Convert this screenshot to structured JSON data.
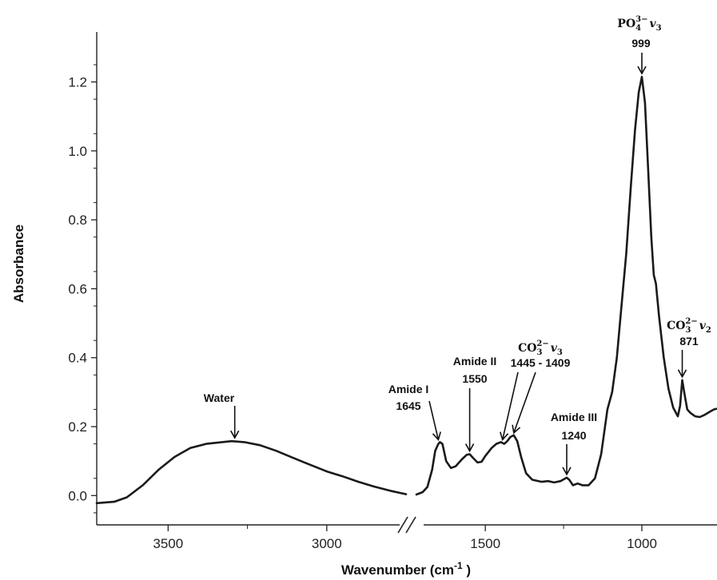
{
  "chart_data": {
    "type": "line",
    "title": "",
    "xlabel": "Wavenumber (cm",
    "xlabel_sup": "-1",
    "xlabel_close": " )",
    "ylabel": "Absorbance",
    "x_reversed": true,
    "x_break": true,
    "x_segments": [
      {
        "xlim": [
          3725,
          2740
        ]
      },
      {
        "xlim": [
          1720,
          760
        ]
      }
    ],
    "ylim": [
      -0.085,
      1.345
    ],
    "x_ticks": [
      {
        "value": 3500,
        "label": "3500"
      },
      {
        "value": 3000,
        "label": "3000"
      },
      {
        "value": 1500,
        "label": "1500"
      },
      {
        "value": 1000,
        "label": "1000"
      }
    ],
    "y_ticks": [
      {
        "value": 0.0,
        "label": "0.0"
      },
      {
        "value": 0.2,
        "label": "0.2"
      },
      {
        "value": 0.4,
        "label": "0.4"
      },
      {
        "value": 0.6,
        "label": "0.6"
      },
      {
        "value": 0.8,
        "label": "0.8"
      },
      {
        "value": 1.0,
        "label": "1.0"
      },
      {
        "value": 1.2,
        "label": "1.2"
      }
    ],
    "grid": false,
    "legend": "none",
    "line_color": "#1a1a1a",
    "series": [
      {
        "segment": 0,
        "points": [
          [
            3725,
            -0.022
          ],
          [
            3670,
            -0.018
          ],
          [
            3630,
            -0.005
          ],
          [
            3580,
            0.03
          ],
          [
            3530,
            0.075
          ],
          [
            3480,
            0.112
          ],
          [
            3430,
            0.138
          ],
          [
            3380,
            0.15
          ],
          [
            3330,
            0.155
          ],
          [
            3300,
            0.158
          ],
          [
            3260,
            0.155
          ],
          [
            3210,
            0.146
          ],
          [
            3160,
            0.13
          ],
          [
            3110,
            0.111
          ],
          [
            3060,
            0.092
          ],
          [
            3000,
            0.07
          ],
          [
            2950,
            0.056
          ],
          [
            2900,
            0.04
          ],
          [
            2850,
            0.026
          ],
          [
            2800,
            0.014
          ],
          [
            2750,
            0.004
          ]
        ]
      },
      {
        "segment": 1,
        "points": [
          [
            1720,
            0.003
          ],
          [
            1700,
            0.01
          ],
          [
            1685,
            0.025
          ],
          [
            1670,
            0.075
          ],
          [
            1660,
            0.13
          ],
          [
            1650,
            0.15
          ],
          [
            1645,
            0.155
          ],
          [
            1637,
            0.15
          ],
          [
            1625,
            0.1
          ],
          [
            1610,
            0.08
          ],
          [
            1595,
            0.085
          ],
          [
            1575,
            0.105
          ],
          [
            1560,
            0.118
          ],
          [
            1550,
            0.12
          ],
          [
            1540,
            0.11
          ],
          [
            1525,
            0.096
          ],
          [
            1512,
            0.098
          ],
          [
            1500,
            0.115
          ],
          [
            1480,
            0.138
          ],
          [
            1465,
            0.15
          ],
          [
            1450,
            0.155
          ],
          [
            1440,
            0.15
          ],
          [
            1430,
            0.158
          ],
          [
            1420,
            0.17
          ],
          [
            1409,
            0.175
          ],
          [
            1398,
            0.158
          ],
          [
            1385,
            0.11
          ],
          [
            1370,
            0.065
          ],
          [
            1350,
            0.046
          ],
          [
            1320,
            0.04
          ],
          [
            1300,
            0.042
          ],
          [
            1280,
            0.038
          ],
          [
            1260,
            0.042
          ],
          [
            1248,
            0.048
          ],
          [
            1240,
            0.052
          ],
          [
            1232,
            0.046
          ],
          [
            1220,
            0.03
          ],
          [
            1205,
            0.035
          ],
          [
            1190,
            0.03
          ],
          [
            1170,
            0.03
          ],
          [
            1150,
            0.05
          ],
          [
            1130,
            0.12
          ],
          [
            1110,
            0.25
          ],
          [
            1095,
            0.3
          ],
          [
            1080,
            0.4
          ],
          [
            1065,
            0.55
          ],
          [
            1050,
            0.7
          ],
          [
            1035,
            0.9
          ],
          [
            1022,
            1.06
          ],
          [
            1010,
            1.17
          ],
          [
            1000,
            1.215
          ],
          [
            990,
            1.14
          ],
          [
            980,
            0.95
          ],
          [
            970,
            0.75
          ],
          [
            962,
            0.64
          ],
          [
            955,
            0.615
          ],
          [
            945,
            0.52
          ],
          [
            930,
            0.4
          ],
          [
            915,
            0.31
          ],
          [
            900,
            0.255
          ],
          [
            885,
            0.23
          ],
          [
            878,
            0.26
          ],
          [
            871,
            0.335
          ],
          [
            863,
            0.29
          ],
          [
            855,
            0.25
          ],
          [
            845,
            0.24
          ],
          [
            830,
            0.23
          ],
          [
            815,
            0.228
          ],
          [
            800,
            0.234
          ],
          [
            785,
            0.242
          ],
          [
            770,
            0.25
          ],
          [
            760,
            0.252
          ]
        ]
      }
    ],
    "annotations": [
      {
        "label": "Water",
        "target": [
          3290,
          0.158
        ]
      },
      {
        "label": "Amide I",
        "value": "1645",
        "target": [
          1645,
          0.155
        ]
      },
      {
        "label": "Amide II",
        "value": "1550",
        "target": [
          1550,
          0.12
        ]
      },
      {
        "label": "CO3 2− v3",
        "value": "1445 - 1409",
        "targets": [
          [
            1445,
            0.155
          ],
          [
            1409,
            0.175
          ]
        ]
      },
      {
        "label": "Amide III",
        "value": "1240",
        "target": [
          1240,
          0.052
        ]
      },
      {
        "label": "PO4 3− v3",
        "value": "999",
        "target": [
          1000,
          1.215
        ]
      },
      {
        "label": "CO3 2− v2",
        "value": "871",
        "target": [
          871,
          0.335
        ]
      }
    ]
  },
  "labels": {
    "water": "Water",
    "amide1": "Amide I",
    "amide1_val": "1645",
    "amide2": "Amide II",
    "amide2_val": "1550",
    "co3v3_base": "CO",
    "co3v3_sub": "3",
    "co3v3_sup": "2−",
    "co3v3_nu": "v",
    "co3v3_nusub": "3",
    "co3v3_val": "1445 - 1409",
    "amide3": "Amide III",
    "amide3_val": "1240",
    "po4_base": "PO",
    "po4_sub": "4",
    "po4_sup": "3−",
    "po4_nu": "v",
    "po4_nusub": "3",
    "po4_val": "999",
    "co3v2_base": "CO",
    "co3v2_sub": "3",
    "co3v2_sup": "2−",
    "co3v2_nu": "v",
    "co3v2_nusub": "2",
    "co3v2_val": "871"
  }
}
